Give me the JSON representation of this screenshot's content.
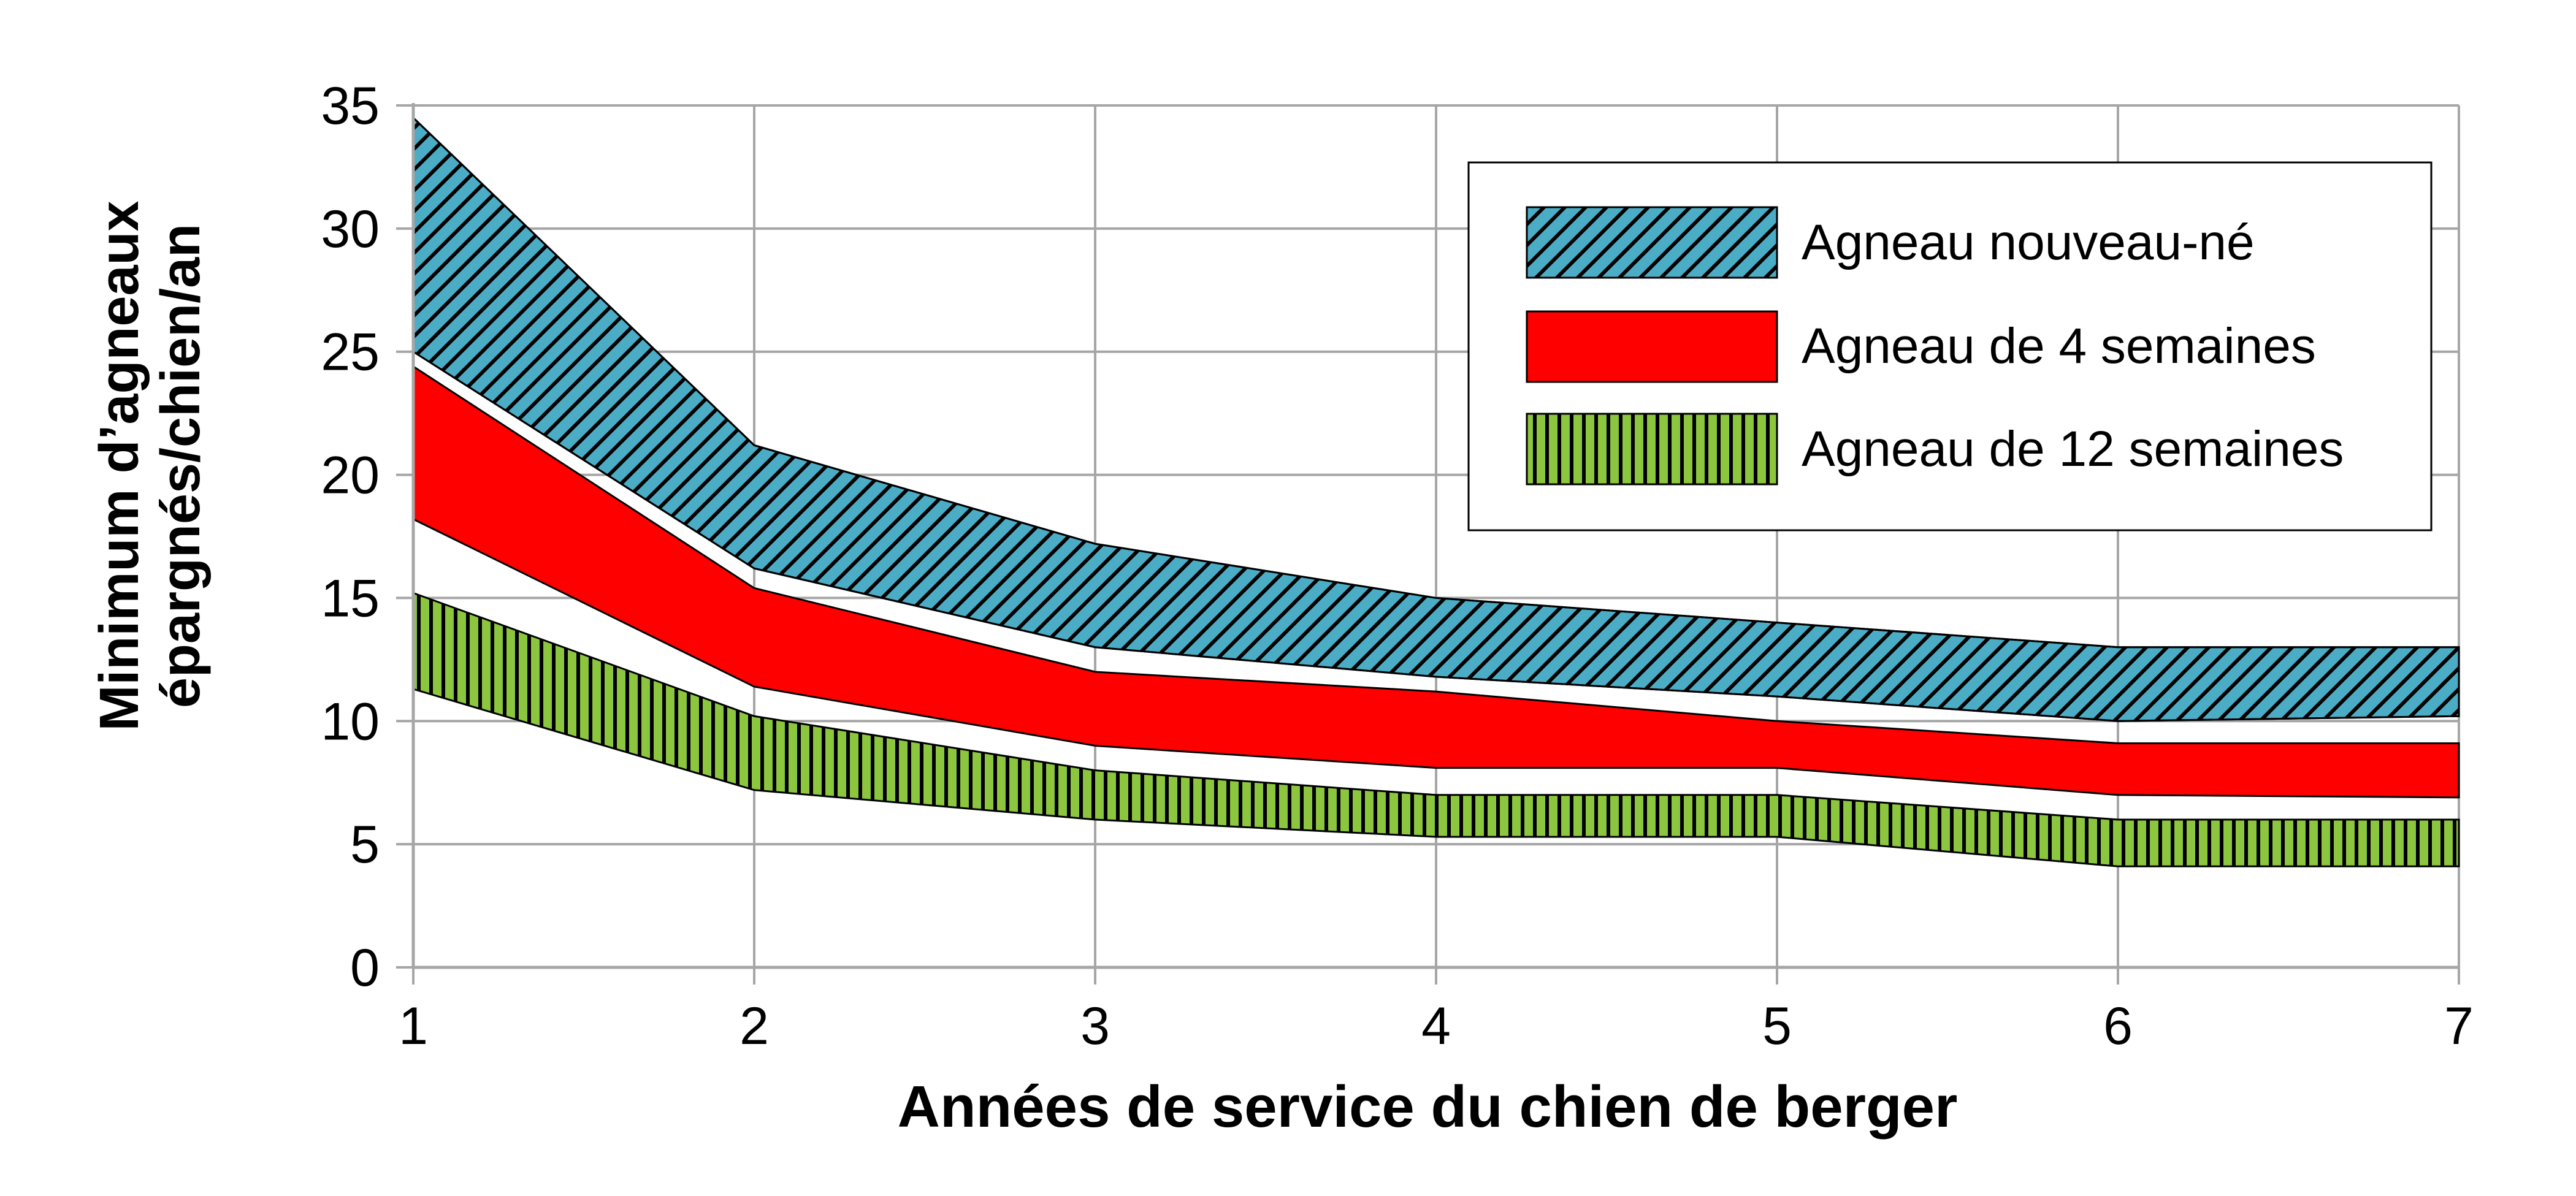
{
  "chart_data": {
    "type": "area",
    "xlabel": "Années de service du chien de berger",
    "ylabel_line1": "Minimum d’agneaux",
    "ylabel_line2": "épargnés/chien/an",
    "x": [
      1,
      2,
      3,
      4,
      5,
      6,
      7
    ],
    "xlim": [
      1,
      7
    ],
    "ylim": [
      0,
      35
    ],
    "x_ticks": [
      "1",
      "2",
      "3",
      "4",
      "5",
      "6",
      "7"
    ],
    "y_ticks": [
      "0",
      "5",
      "10",
      "15",
      "20",
      "25",
      "30",
      "35"
    ],
    "grid": true,
    "legend_position": "top-right",
    "series": [
      {
        "name": "Agneau nouveau-né",
        "lower": [
          25.0,
          16.2,
          13.0,
          11.8,
          11.0,
          10.0,
          10.2
        ],
        "upper": [
          34.5,
          21.2,
          17.2,
          15.0,
          14.0,
          13.0,
          13.0
        ],
        "color": "#4bacc6",
        "pattern": "diagonal-hatch"
      },
      {
        "name": "Agneau de 4 semaines",
        "lower": [
          18.2,
          11.4,
          9.0,
          8.1,
          8.1,
          7.0,
          6.9
        ],
        "upper": [
          24.4,
          15.4,
          12.0,
          11.2,
          10.0,
          9.1,
          9.1
        ],
        "color": "#ff0000",
        "pattern": "solid"
      },
      {
        "name": "Agneau de 12 semaines",
        "lower": [
          11.3,
          7.2,
          6.0,
          5.3,
          5.3,
          4.1,
          4.1
        ],
        "upper": [
          15.2,
          10.2,
          8.0,
          7.0,
          7.0,
          6.0,
          6.0
        ],
        "color": "#8cc63f",
        "pattern": "vertical-hatch"
      }
    ],
    "overlap_color": "#8064a2"
  }
}
